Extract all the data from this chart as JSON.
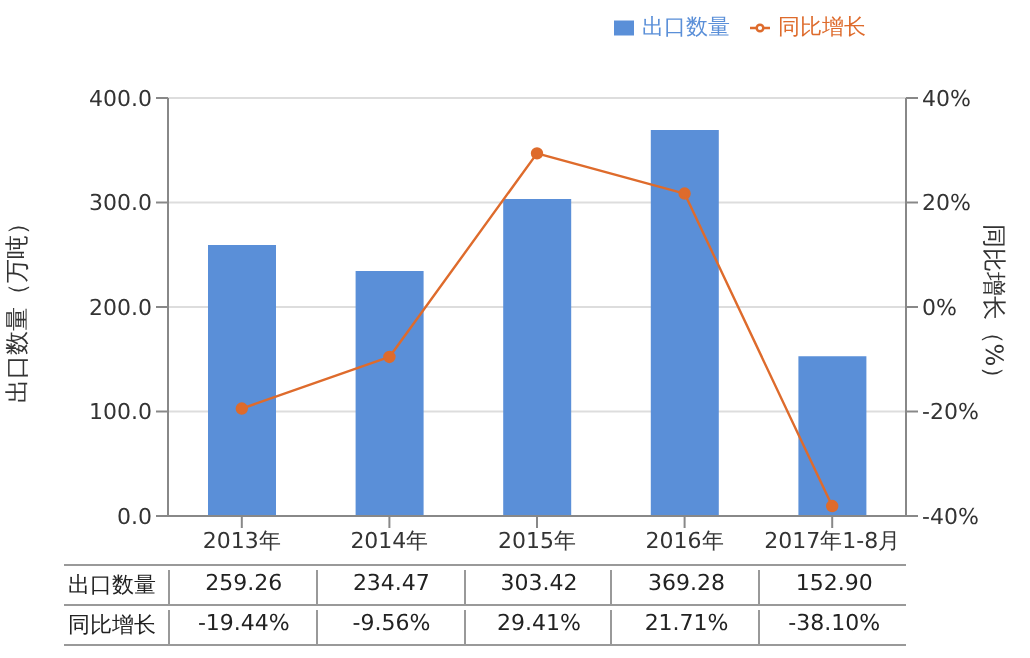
{
  "chart_data": {
    "type": "bar",
    "categories": [
      "2013年",
      "2014年",
      "2015年",
      "2016年",
      "2017年1-8月"
    ],
    "series": [
      {
        "name": "出口数量",
        "color": "#5a8fd8",
        "values": [
          259.26,
          234.47,
          303.42,
          369.28,
          152.9
        ],
        "value_labels": [
          "259.26",
          "234.47",
          "303.42",
          "369.28",
          "152.90"
        ]
      },
      {
        "name": "同比增长",
        "type": "line",
        "axis": "y2",
        "color": "#de6b2c",
        "values": [
          -19.44,
          -9.56,
          29.41,
          21.71,
          -38.1
        ],
        "value_labels": [
          "-19.44%",
          "-9.56%",
          "29.41%",
          "21.71%",
          "-38.10%"
        ]
      }
    ],
    "ylabel": "出口数量（万吨）",
    "y2label": "同比增长（%）",
    "ylim": [
      0,
      400
    ],
    "yticks": [
      {
        "value": 0,
        "label": "0.0"
      },
      {
        "value": 100,
        "label": "100.0"
      },
      {
        "value": 200,
        "label": "200.0"
      },
      {
        "value": 300,
        "label": "300.0"
      },
      {
        "value": 400,
        "label": "400.0"
      }
    ],
    "y2lim": [
      -40,
      40
    ],
    "y2ticks": [
      {
        "value": -40,
        "label": "-40%"
      },
      {
        "value": -20,
        "label": "-20%"
      },
      {
        "value": 0,
        "label": "0%"
      },
      {
        "value": 20,
        "label": "20%"
      },
      {
        "value": 40,
        "label": "40%"
      }
    ],
    "grid": "y",
    "legend": "top right",
    "marker": "circle"
  }
}
